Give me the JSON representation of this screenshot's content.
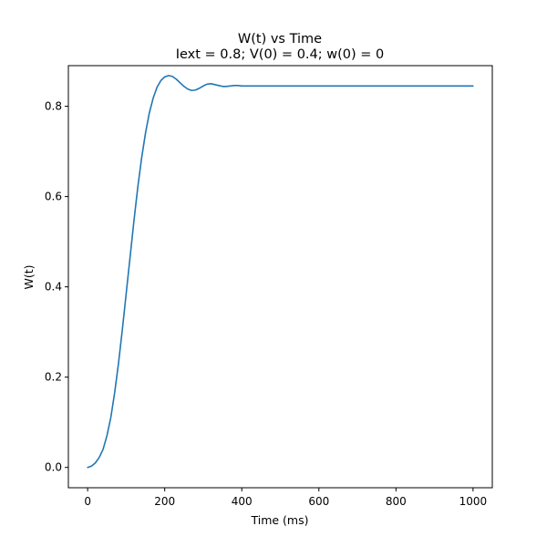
{
  "chart_data": {
    "type": "line",
    "title": "W(t) vs Time",
    "subtitle": "Iext = 0.8; V(0) = 0.4; w(0) = 0",
    "xlabel": "Time (ms)",
    "ylabel": "W(t)",
    "xlim": [
      -50,
      1050
    ],
    "ylim": [
      -0.045,
      0.89
    ],
    "xticks": [
      0,
      200,
      400,
      600,
      800,
      1000
    ],
    "xtick_labels": [
      "0",
      "200",
      "400",
      "600",
      "800",
      "1000"
    ],
    "yticks": [
      0.0,
      0.2,
      0.4,
      0.6,
      0.8
    ],
    "ytick_labels": [
      "0.0",
      "0.2",
      "0.4",
      "0.6",
      "0.8"
    ],
    "grid": false,
    "series": [
      {
        "color": "#1f77b4",
        "x": [
          0,
          10,
          20,
          30,
          40,
          50,
          60,
          70,
          80,
          90,
          100,
          110,
          120,
          130,
          140,
          150,
          160,
          170,
          180,
          190,
          200,
          210,
          220,
          230,
          240,
          250,
          260,
          270,
          280,
          290,
          300,
          310,
          320,
          330,
          340,
          350,
          360,
          370,
          380,
          390,
          400,
          420,
          440,
          460,
          480,
          500,
          550,
          600,
          700,
          800,
          900,
          1000
        ],
        "y": [
          0.0,
          0.003,
          0.01,
          0.022,
          0.04,
          0.07,
          0.11,
          0.165,
          0.23,
          0.305,
          0.385,
          0.465,
          0.545,
          0.62,
          0.685,
          0.74,
          0.785,
          0.818,
          0.842,
          0.857,
          0.865,
          0.868,
          0.866,
          0.86,
          0.852,
          0.844,
          0.838,
          0.835,
          0.836,
          0.84,
          0.845,
          0.849,
          0.85,
          0.848,
          0.846,
          0.844,
          0.844,
          0.845,
          0.846,
          0.846,
          0.845,
          0.845,
          0.845,
          0.845,
          0.845,
          0.845,
          0.845,
          0.845,
          0.845,
          0.845,
          0.845,
          0.845
        ]
      }
    ]
  }
}
